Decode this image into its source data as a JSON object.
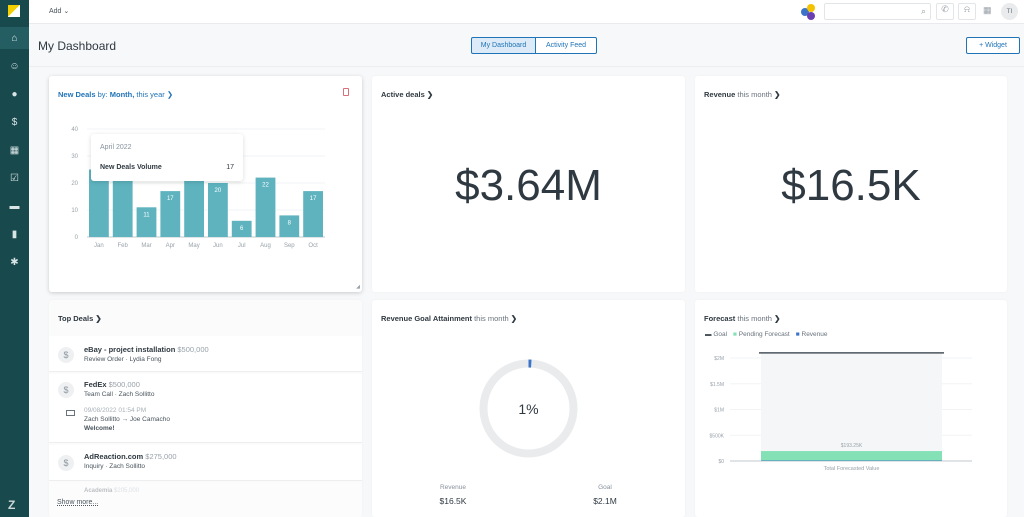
{
  "topbar": {
    "add_label": "Add",
    "avatar": "TI"
  },
  "header": {
    "title": "My Dashboard",
    "tabs": [
      {
        "label": "My Dashboard",
        "active": true
      },
      {
        "label": "Activity Feed",
        "active": false
      }
    ],
    "widget_button": "+ Widget"
  },
  "sidebar": {
    "items": [
      "home-icon",
      "mascot-icon",
      "person-icon",
      "dollar-icon",
      "calendar-icon",
      "checkbox-icon",
      "chat-icon",
      "bar-chart-icon",
      "gear-icon"
    ],
    "logo": "zendesk-logo"
  },
  "new_deals": {
    "title": "New Deals",
    "by": "by:",
    "month": "Month,",
    "period": "this year",
    "chevron": "❯",
    "tooltip": {
      "date": "April 2022",
      "label": "New Deals Volume",
      "value": "17"
    }
  },
  "active_deals": {
    "title": "Active deals",
    "chevron": "❯",
    "value": "$3.64M"
  },
  "revenue": {
    "title": "Revenue",
    "period": "this month",
    "chevron": "❯",
    "value": "$16.5K"
  },
  "top_deals": {
    "title": "Top Deals",
    "chevron": "❯",
    "show_more": "Show more...",
    "deals": [
      {
        "name": "eBay - project installation",
        "amount": "$500,000",
        "sub": "Review Order · Lydia Fong"
      },
      {
        "name": "FedEx",
        "amount": "$500,000",
        "sub": "Team Call · Zach Sollitto",
        "email": {
          "date": "09/08/2022 01:54 PM",
          "route": "Zach Sollitto → Joe Camacho",
          "subject": "Welcome!"
        }
      },
      {
        "name": "AdReaction.com",
        "amount": "$275,000",
        "sub": "Inquiry · Zach Sollitto"
      },
      {
        "name": "Academia",
        "amount": "$205,000"
      }
    ]
  },
  "goal": {
    "title": "Revenue Goal Attainment",
    "period": "this month",
    "chevron": "❯",
    "percent": "1%",
    "percent_value": 1,
    "revenue_label": "Revenue",
    "revenue": "$16.5K",
    "goal_label": "Goal",
    "goal": "$2.1M"
  },
  "forecast": {
    "title": "Forecast",
    "period": "this month",
    "chevron": "❯"
  },
  "chart_data": [
    {
      "type": "bar",
      "title": "New Deals by: Month, this year",
      "categories": [
        "Jan",
        "Feb",
        "Mar",
        "Apr",
        "May",
        "Jun",
        "Jul",
        "Aug",
        "Sep",
        "Oct"
      ],
      "values": [
        25,
        26,
        11,
        17,
        21,
        20,
        6,
        22,
        8,
        17
      ],
      "value_labels": [
        "",
        "",
        "11",
        "17",
        "",
        "20",
        "6",
        "22",
        "8",
        "17"
      ],
      "ylim": [
        0,
        40
      ],
      "yticks": [
        "0",
        "10",
        "20",
        "30",
        "40"
      ],
      "color": "#5eb3bf",
      "grid": true
    },
    {
      "type": "bar",
      "title": "Forecast this month",
      "categories": [
        "Total Forecasted Value"
      ],
      "legend": [
        "Goal",
        "Pending Forecast",
        "Revenue"
      ],
      "legend_colors": [
        "#49545c",
        "#84e1b6",
        "#3b73c9"
      ],
      "goal": 2100000,
      "pending": 193250,
      "revenue": 16500,
      "data_label": "$193.25K",
      "ylim": [
        0,
        2000000
      ],
      "yticks": [
        "$0",
        "$500K",
        "$1M",
        "$1.5M",
        "$2M"
      ]
    }
  ]
}
